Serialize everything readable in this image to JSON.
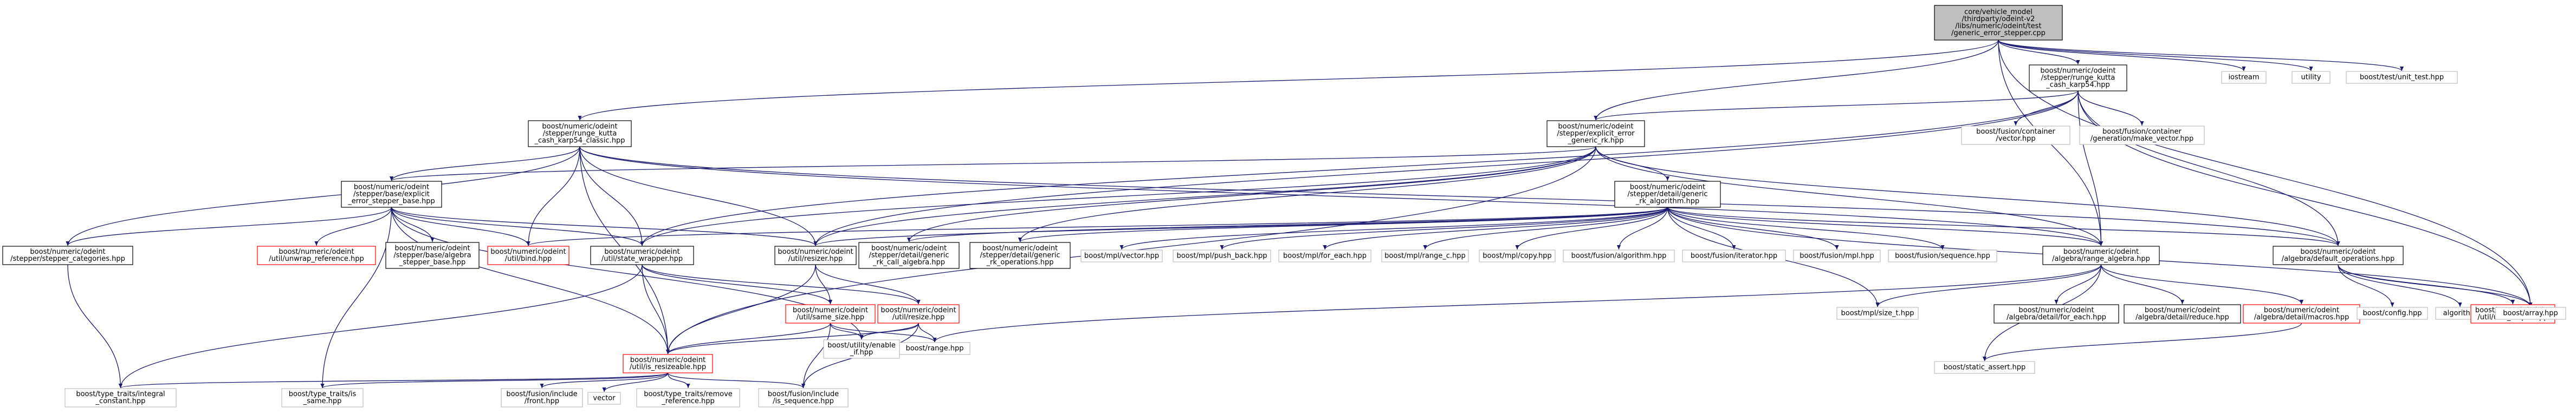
{
  "colors": {
    "edge": "#191970",
    "edge_red": "#d04040",
    "black_border": "#000000",
    "grey_border": "#bfbfbf",
    "red_border": "#ff0000",
    "root_fill": "#bfbfbf",
    "default_fill": "#ffffff"
  },
  "nodes": [
    {
      "id": "root",
      "lines": [
        "core/vehicle_model",
        "/thirdparty/odeint-v2",
        "/libs/numeric/odeint/test",
        "/generic_error_stepper.cpp"
      ],
      "border": "black",
      "fill": "root"
    },
    {
      "id": "iostream",
      "lines": [
        "iostream"
      ],
      "border": "grey"
    },
    {
      "id": "utility",
      "lines": [
        "utility"
      ],
      "border": "grey"
    },
    {
      "id": "unit_test",
      "lines": [
        "boost/test/unit_test.hpp"
      ],
      "border": "grey"
    },
    {
      "id": "rk_cash_karp54",
      "lines": [
        "boost/numeric/odeint",
        "/stepper/runge_kutta",
        "_cash_karp54.hpp"
      ],
      "border": "black"
    },
    {
      "id": "rk_cash_karp54_classic",
      "lines": [
        "boost/numeric/odeint",
        "/stepper/runge_kutta",
        "_cash_karp54_classic.hpp"
      ],
      "border": "black"
    },
    {
      "id": "explicit_error_rk",
      "lines": [
        "boost/numeric/odeint",
        "/stepper/explicit_error",
        "_generic_rk.hpp"
      ],
      "border": "black"
    },
    {
      "id": "fusion_vector",
      "lines": [
        "boost/fusion/container",
        "/vector.hpp"
      ],
      "border": "grey"
    },
    {
      "id": "fusion_make_vector",
      "lines": [
        "boost/fusion/container",
        "/generation/make_vector.hpp"
      ],
      "border": "grey"
    },
    {
      "id": "explicit_error_stepper_base",
      "lines": [
        "boost/numeric/odeint",
        "/stepper/base/explicit",
        "_error_stepper_base.hpp"
      ],
      "border": "black"
    },
    {
      "id": "generic_rk_algorithm",
      "lines": [
        "boost/numeric/odeint",
        "/stepper/detail/generic",
        "_rk_algorithm.hpp"
      ],
      "border": "black"
    },
    {
      "id": "stepper_categories",
      "lines": [
        "boost/numeric/odeint",
        "/stepper/stepper_categories.hpp"
      ],
      "border": "black"
    },
    {
      "id": "unwrap_reference",
      "lines": [
        "boost/numeric/odeint",
        "/util/unwrap_reference.hpp"
      ],
      "border": "red"
    },
    {
      "id": "base_algebra_stepper",
      "lines": [
        "boost/numeric/odeint",
        "/stepper/base/algebra",
        "_stepper_base.hpp"
      ],
      "border": "black"
    },
    {
      "id": "util_bind",
      "lines": [
        "boost/numeric/odeint",
        "/util/bind.hpp"
      ],
      "border": "red"
    },
    {
      "id": "state_wrapper",
      "lines": [
        "boost/numeric/odeint",
        "/util/state_wrapper.hpp"
      ],
      "border": "black"
    },
    {
      "id": "resizer",
      "lines": [
        "boost/numeric/odeint",
        "/util/resizer.hpp"
      ],
      "border": "black"
    },
    {
      "id": "generic_rk_call_algebra",
      "lines": [
        "boost/numeric/odeint",
        "/stepper/detail/generic",
        "_rk_call_algebra.hpp"
      ],
      "border": "black"
    },
    {
      "id": "generic_rk_operations",
      "lines": [
        "boost/numeric/odeint",
        "/stepper/detail/generic",
        "_rk_operations.hpp"
      ],
      "border": "black"
    },
    {
      "id": "mpl_vector",
      "lines": [
        "boost/mpl/vector.hpp"
      ],
      "border": "grey"
    },
    {
      "id": "mpl_push_back",
      "lines": [
        "boost/mpl/push_back.hpp"
      ],
      "border": "grey"
    },
    {
      "id": "mpl_for_each",
      "lines": [
        "boost/mpl/for_each.hpp"
      ],
      "border": "grey"
    },
    {
      "id": "mpl_range_c",
      "lines": [
        "boost/mpl/range_c.hpp"
      ],
      "border": "grey"
    },
    {
      "id": "mpl_copy",
      "lines": [
        "boost/mpl/copy.hpp"
      ],
      "border": "grey"
    },
    {
      "id": "fusion_algorithm",
      "lines": [
        "boost/fusion/algorithm.hpp"
      ],
      "border": "grey"
    },
    {
      "id": "fusion_iterator",
      "lines": [
        "boost/fusion/iterator.hpp"
      ],
      "border": "grey"
    },
    {
      "id": "fusion_mpl",
      "lines": [
        "boost/fusion/mpl.hpp"
      ],
      "border": "grey"
    },
    {
      "id": "fusion_sequence",
      "lines": [
        "boost/fusion/sequence.hpp"
      ],
      "border": "grey"
    },
    {
      "id": "range_algebra",
      "lines": [
        "boost/numeric/odeint",
        "/algebra/range_algebra.hpp"
      ],
      "border": "black"
    },
    {
      "id": "default_operations",
      "lines": [
        "boost/numeric/odeint",
        "/algebra/default_operations.hpp"
      ],
      "border": "black"
    },
    {
      "id": "same_size",
      "lines": [
        "boost/numeric/odeint",
        "/util/same_size.hpp"
      ],
      "border": "red"
    },
    {
      "id": "util_resize",
      "lines": [
        "boost/numeric/odeint",
        "/util/resize.hpp"
      ],
      "border": "red"
    },
    {
      "id": "mpl_size_t",
      "lines": [
        "boost/mpl/size_t.hpp"
      ],
      "border": "grey"
    },
    {
      "id": "detail_for_each",
      "lines": [
        "boost/numeric/odeint",
        "/algebra/detail/for_each.hpp"
      ],
      "border": "black"
    },
    {
      "id": "detail_reduce",
      "lines": [
        "boost/numeric/odeint",
        "/algebra/detail/reduce.hpp"
      ],
      "border": "black"
    },
    {
      "id": "detail_macros",
      "lines": [
        "boost/numeric/odeint",
        "/algebra/detail/macros.hpp"
      ],
      "border": "red"
    },
    {
      "id": "config",
      "lines": [
        "boost/config.hpp"
      ],
      "border": "grey"
    },
    {
      "id": "algorithm",
      "lines": [
        "algorithm"
      ],
      "border": "grey"
    },
    {
      "id": "unit_helper",
      "lines": [
        "boost/numeric/odeint",
        "/util/unit_helper.hpp"
      ],
      "border": "red"
    },
    {
      "id": "boost_array",
      "lines": [
        "boost/array.hpp"
      ],
      "border": "grey"
    },
    {
      "id": "enable_if",
      "lines": [
        "boost/utility/enable",
        "_if.hpp"
      ],
      "border": "grey"
    },
    {
      "id": "range_hpp",
      "lines": [
        "boost/range.hpp"
      ],
      "border": "grey"
    },
    {
      "id": "static_assert",
      "lines": [
        "boost/static_assert.hpp"
      ],
      "border": "grey"
    },
    {
      "id": "is_resizeable",
      "lines": [
        "boost/numeric/odeint",
        "/util/is_resizeable.hpp"
      ],
      "border": "red"
    },
    {
      "id": "integral_constant",
      "lines": [
        "boost/type_traits/integral",
        "_constant.hpp"
      ],
      "border": "grey"
    },
    {
      "id": "is_same",
      "lines": [
        "boost/type_traits/is",
        "_same.hpp"
      ],
      "border": "grey"
    },
    {
      "id": "fusion_front",
      "lines": [
        "boost/fusion/include",
        "/front.hpp"
      ],
      "border": "grey"
    },
    {
      "id": "vector_std",
      "lines": [
        "vector"
      ],
      "border": "grey"
    },
    {
      "id": "remove_reference",
      "lines": [
        "boost/type_traits/remove",
        "_reference.hpp"
      ],
      "border": "grey"
    },
    {
      "id": "is_sequence",
      "lines": [
        "boost/fusion/include",
        "/is_sequence.hpp"
      ],
      "border": "grey"
    }
  ],
  "edges": [
    [
      "root",
      "iostream"
    ],
    [
      "root",
      "utility"
    ],
    [
      "root",
      "unit_test"
    ],
    [
      "root",
      "rk_cash_karp54"
    ],
    [
      "root",
      "rk_cash_karp54_classic"
    ],
    [
      "root",
      "explicit_error_rk"
    ],
    [
      "root",
      "range_algebra"
    ],
    [
      "root",
      "boost_array"
    ],
    [
      "rk_cash_karp54",
      "fusion_vector"
    ],
    [
      "rk_cash_karp54",
      "fusion_make_vector"
    ],
    [
      "rk_cash_karp54",
      "explicit_error_rk"
    ],
    [
      "rk_cash_karp54",
      "range_algebra"
    ],
    [
      "rk_cash_karp54",
      "default_operations"
    ],
    [
      "rk_cash_karp54",
      "boost_array"
    ],
    [
      "rk_cash_karp54",
      "state_wrapper"
    ],
    [
      "rk_cash_karp54",
      "resizer"
    ],
    [
      "rk_cash_karp54_classic",
      "explicit_error_stepper_base"
    ],
    [
      "rk_cash_karp54_classic",
      "stepper_categories"
    ],
    [
      "rk_cash_karp54_classic",
      "state_wrapper"
    ],
    [
      "rk_cash_karp54_classic",
      "resizer"
    ],
    [
      "rk_cash_karp54_classic",
      "util_bind"
    ],
    [
      "rk_cash_karp54_classic",
      "range_algebra"
    ],
    [
      "rk_cash_karp54_classic",
      "default_operations"
    ],
    [
      "rk_cash_karp54_classic",
      "is_resizeable"
    ],
    [
      "explicit_error_rk",
      "generic_rk_algorithm"
    ],
    [
      "explicit_error_rk",
      "explicit_error_stepper_base"
    ],
    [
      "explicit_error_rk",
      "generic_rk_call_algebra"
    ],
    [
      "explicit_error_rk",
      "generic_rk_operations"
    ],
    [
      "explicit_error_rk",
      "state_wrapper"
    ],
    [
      "explicit_error_rk",
      "resizer"
    ],
    [
      "explicit_error_rk",
      "range_algebra"
    ],
    [
      "explicit_error_rk",
      "default_operations"
    ],
    [
      "explicit_error_rk",
      "is_resizeable"
    ],
    [
      "explicit_error_stepper_base",
      "stepper_categories"
    ],
    [
      "explicit_error_stepper_base",
      "unwrap_reference"
    ],
    [
      "explicit_error_stepper_base",
      "base_algebra_stepper"
    ],
    [
      "explicit_error_stepper_base",
      "util_bind"
    ],
    [
      "explicit_error_stepper_base",
      "state_wrapper"
    ],
    [
      "explicit_error_stepper_base",
      "resizer"
    ],
    [
      "explicit_error_stepper_base",
      "is_resizeable"
    ],
    [
      "explicit_error_stepper_base",
      "is_same"
    ],
    [
      "explicit_error_stepper_base",
      "enable_if"
    ],
    [
      "generic_rk_algorithm",
      "mpl_vector"
    ],
    [
      "generic_rk_algorithm",
      "mpl_push_back"
    ],
    [
      "generic_rk_algorithm",
      "mpl_for_each"
    ],
    [
      "generic_rk_algorithm",
      "mpl_range_c"
    ],
    [
      "generic_rk_algorithm",
      "mpl_copy"
    ],
    [
      "generic_rk_algorithm",
      "mpl_size_t"
    ],
    [
      "generic_rk_algorithm",
      "fusion_algorithm"
    ],
    [
      "generic_rk_algorithm",
      "fusion_iterator"
    ],
    [
      "generic_rk_algorithm",
      "fusion_mpl"
    ],
    [
      "generic_rk_algorithm",
      "fusion_sequence"
    ],
    [
      "generic_rk_algorithm",
      "boost_array"
    ],
    [
      "generic_rk_algorithm",
      "generic_rk_call_algebra"
    ],
    [
      "generic_rk_algorithm",
      "generic_rk_operations"
    ],
    [
      "generic_rk_algorithm",
      "range_algebra"
    ],
    [
      "generic_rk_algorithm",
      "default_operations"
    ],
    [
      "generic_rk_algorithm",
      "util_bind"
    ],
    [
      "generic_rk_algorithm",
      "resizer"
    ],
    [
      "stepper_categories",
      "integral_constant"
    ],
    [
      "state_wrapper",
      "is_resizeable"
    ],
    [
      "state_wrapper",
      "same_size"
    ],
    [
      "state_wrapper",
      "util_resize"
    ],
    [
      "state_wrapper",
      "integral_constant"
    ],
    [
      "resizer",
      "same_size"
    ],
    [
      "resizer",
      "util_resize"
    ],
    [
      "resizer",
      "is_resizeable"
    ],
    [
      "same_size",
      "is_resizeable"
    ],
    [
      "same_size",
      "enable_if"
    ],
    [
      "same_size",
      "range_hpp"
    ],
    [
      "same_size",
      "is_sequence"
    ],
    [
      "util_resize",
      "is_resizeable"
    ],
    [
      "util_resize",
      "enable_if"
    ],
    [
      "util_resize",
      "range_hpp"
    ],
    [
      "util_resize",
      "is_sequence"
    ],
    [
      "range_algebra",
      "mpl_size_t"
    ],
    [
      "range_algebra",
      "detail_for_each"
    ],
    [
      "range_algebra",
      "detail_reduce"
    ],
    [
      "range_algebra",
      "detail_macros"
    ],
    [
      "range_algebra",
      "range_hpp"
    ],
    [
      "range_algebra",
      "static_assert"
    ],
    [
      "default_operations",
      "config"
    ],
    [
      "default_operations",
      "algorithm"
    ],
    [
      "default_operations",
      "unit_helper"
    ],
    [
      "default_operations",
      "boost_array"
    ],
    [
      "detail_macros",
      "static_assert"
    ],
    [
      "is_resizeable",
      "integral_constant"
    ],
    [
      "is_resizeable",
      "is_same"
    ],
    [
      "is_resizeable",
      "fusion_front"
    ],
    [
      "is_resizeable",
      "vector_std"
    ],
    [
      "is_resizeable",
      "remove_reference"
    ],
    [
      "is_resizeable",
      "is_sequence"
    ]
  ]
}
